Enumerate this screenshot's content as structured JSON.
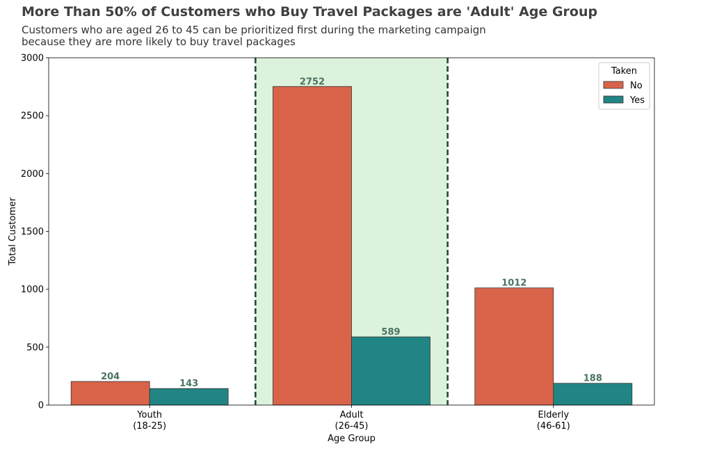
{
  "colors": {
    "no": "#d9644a",
    "yes": "#218583",
    "highlight_fill": "#dcf2dd",
    "highlight_line": "#1f4d33",
    "label_text": "#4a7360"
  },
  "chart_data": {
    "type": "bar",
    "title": "More Than 50% of Customers who Buy Travel Packages are 'Adult' Age Group",
    "subtitle_lines": [
      "Customers who are aged 26 to 45 can be prioritized first during the marketing campaign",
      "because they are more likely to buy travel packages"
    ],
    "xlabel": "Age Group",
    "ylabel": "Total Customer",
    "ylim": [
      0,
      3000
    ],
    "yticks": [
      0,
      500,
      1000,
      1500,
      2000,
      2500,
      3000
    ],
    "categories": [
      [
        "Youth",
        "(18-25)"
      ],
      [
        "Adult",
        "(26-45)"
      ],
      [
        "Elderly",
        "(46-61)"
      ]
    ],
    "series": [
      {
        "name": "No",
        "values": [
          204,
          2752,
          1012
        ]
      },
      {
        "name": "Yes",
        "values": [
          143,
          589,
          188
        ]
      }
    ],
    "legend": {
      "title": "Taken",
      "placement": "top-right"
    },
    "highlight_category": 1,
    "grid": false
  }
}
